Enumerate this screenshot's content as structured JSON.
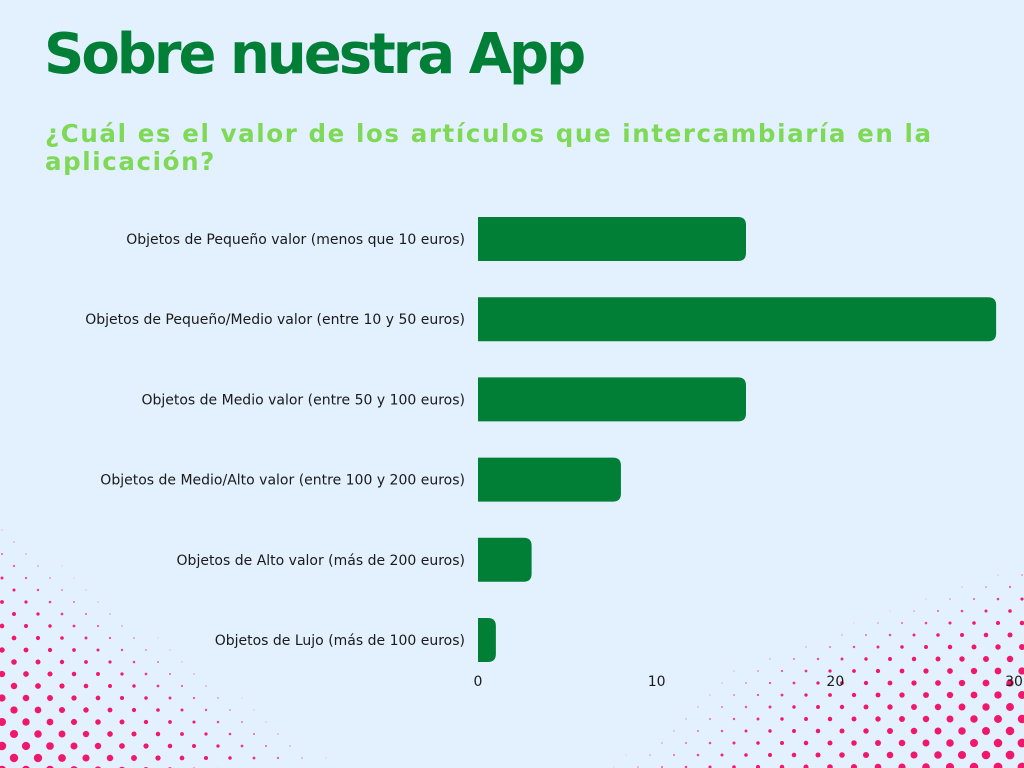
{
  "header": {
    "title": "Sobre nuestra App",
    "subtitle": "¿Cuál es el valor de los artículos que intercambiaría en la aplicación?"
  },
  "colors": {
    "background": "#e3f0fe",
    "title": "#017f36",
    "subtitle": "#7ed957",
    "bar": "#017f36",
    "halftone": "#f0186a"
  },
  "chart_data": {
    "type": "bar",
    "orientation": "horizontal",
    "title": "¿Cuál es el valor de los artículos que intercambiaría en la aplicación?",
    "xlabel": "",
    "ylabel": "",
    "categories": [
      "Objetos de Pequeño valor (menos que 10 euros)",
      "Objetos de Pequeño/Medio valor (entre 10 y 50 euros)",
      "Objetos de Medio valor (entre 50 y 100 euros)",
      "Objetos de Medio/Alto valor (entre 100 y 200 euros)",
      "Objetos de Alto valor (más de 200 euros)",
      "Objetos de Lujo (más de 100 euros)"
    ],
    "values": [
      15,
      29,
      15,
      8,
      3,
      1
    ],
    "xlim": [
      0,
      30
    ],
    "xticks": [
      "0",
      "10",
      "20",
      "30"
    ],
    "grid": false,
    "legend": "none"
  }
}
